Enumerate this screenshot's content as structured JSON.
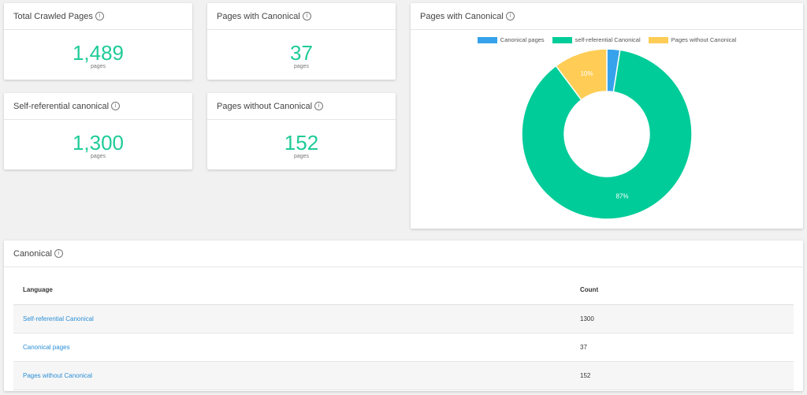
{
  "stats": [
    {
      "title": "Total Crawled Pages",
      "value": "1,489",
      "unit": "pages"
    },
    {
      "title": "Pages with Canonical",
      "value": "37",
      "unit": "pages"
    },
    {
      "title": "Self-referential canonical",
      "value": "1,300",
      "unit": "pages"
    },
    {
      "title": "Pages without Canonical",
      "value": "152",
      "unit": "pages"
    }
  ],
  "info_glyph": "i",
  "chart_card": {
    "title": "Pages with Canonical"
  },
  "chart_data": {
    "type": "pie",
    "donut": true,
    "legend_position": "top",
    "series": [
      {
        "name": "Canonical pages",
        "value": 37,
        "color": "#36a2eb",
        "label": ""
      },
      {
        "name": "self-referential Canonical",
        "value": 1300,
        "color": "#00cc99",
        "label": "87%"
      },
      {
        "name": "Pages without Canonical",
        "value": 152,
        "color": "#ffcd56",
        "label": "10%"
      }
    ]
  },
  "table_card": {
    "title": "Canonical",
    "headers": {
      "language": "Language",
      "count": "Count"
    },
    "rows": [
      {
        "label": "Self-referential Canonical",
        "count": "1300"
      },
      {
        "label": "Canonical pages",
        "count": "37"
      },
      {
        "label": "Pages without Canonical",
        "count": "152"
      }
    ]
  }
}
